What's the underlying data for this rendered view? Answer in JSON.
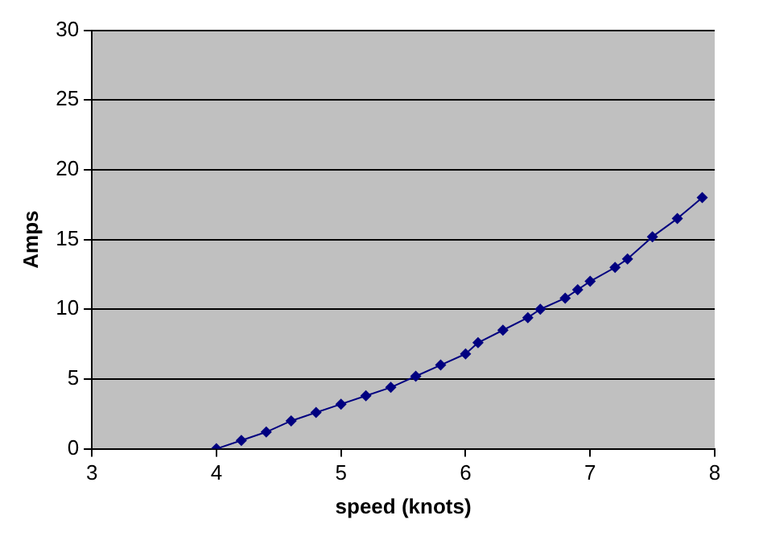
{
  "chart_data": {
    "type": "line",
    "xlabel": "speed (knots)",
    "ylabel": "Amps",
    "x": [
      4,
      4.2,
      4.4,
      4.6,
      4.8,
      5,
      5.2,
      5.4,
      5.6,
      5.8,
      6,
      6.1,
      6.3,
      6.5,
      6.6,
      6.8,
      6.9,
      7,
      7.2,
      7.3,
      7.5,
      7.7,
      7.9
    ],
    "series": [
      {
        "color": "#000080",
        "values": [
          0,
          0.6,
          1.2,
          2,
          2.6,
          3.2,
          3.8,
          4.4,
          5.2,
          6,
          6.8,
          7.6,
          8.5,
          9.4,
          10,
          10.8,
          11.4,
          12,
          13,
          13.6,
          15.2,
          16.5,
          18
        ]
      }
    ],
    "xlim": [
      3,
      8
    ],
    "xticks": [
      3,
      4,
      5,
      6,
      7,
      8
    ],
    "ylim": [
      0,
      30
    ],
    "yticks": [
      0,
      5,
      10,
      15,
      20,
      25,
      30
    ],
    "grid": "y",
    "marker": "diamond",
    "line_style": "solid",
    "legend": false
  }
}
